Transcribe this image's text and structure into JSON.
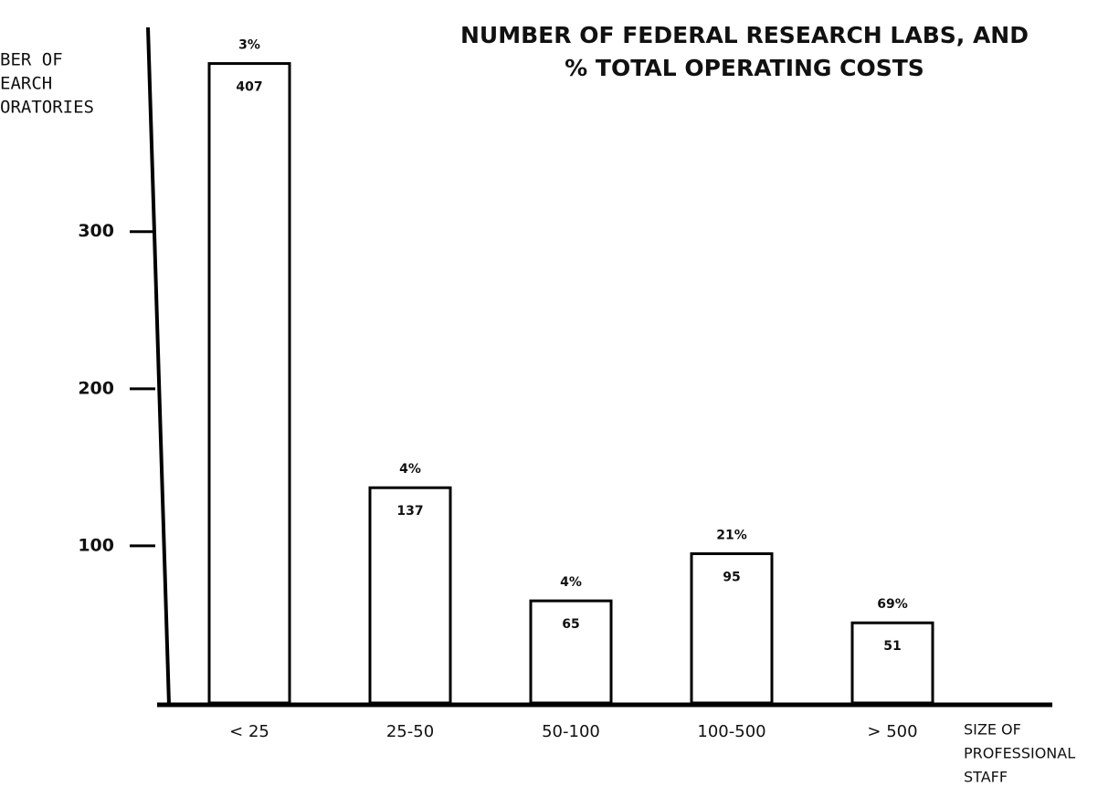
{
  "chart_data": {
    "type": "bar",
    "title": [
      "NUMBER OF FEDERAL RESEARCH LABS, AND",
      "% TOTAL OPERATING COSTS"
    ],
    "y_label": [
      "BER OF",
      "EARCH",
      "ORATORIES"
    ],
    "x_label": [
      "SIZE OF",
      "PROFESSIONAL",
      "STAFF"
    ],
    "categories": [
      "< 25",
      "25-50",
      "50-100",
      "100-500",
      "> 500"
    ],
    "values": [
      407,
      137,
      65,
      95,
      51
    ],
    "cost_share_labels": [
      "3%",
      "4%",
      "4%",
      "21%",
      "69%"
    ],
    "color": "#ffffff",
    "ylim": [
      0,
      430
    ],
    "yticks": [
      100,
      200,
      300
    ]
  }
}
